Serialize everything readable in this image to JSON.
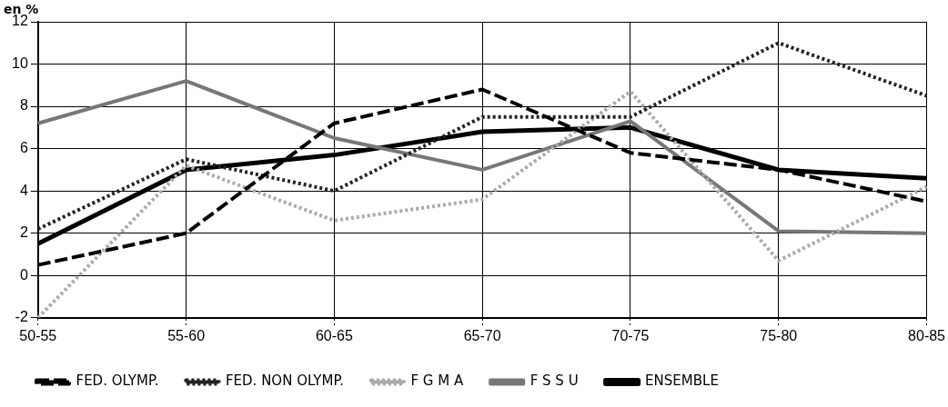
{
  "chart_data": {
    "type": "line",
    "ylabel": "en %",
    "categories": [
      "50-55",
      "55-60",
      "60-65",
      "65-70",
      "70-75",
      "75-80",
      "80-85"
    ],
    "series": [
      {
        "name": "FED. OLYMP.",
        "color": "#000000",
        "line_style": "dashed",
        "values": [
          0.5,
          2.0,
          7.2,
          8.8,
          5.8,
          5.0,
          3.5
        ]
      },
      {
        "name": "FED. NON OLYMP.",
        "color": "#222222",
        "line_style": "dotted",
        "values": [
          2.2,
          5.5,
          4.0,
          7.5,
          7.5,
          11.0,
          8.5
        ]
      },
      {
        "name": "F G M A",
        "color": "#aaaaaa",
        "line_style": "dotted",
        "values": [
          -2.0,
          5.2,
          2.6,
          3.6,
          8.7,
          0.7,
          4.2
        ]
      },
      {
        "name": "F S S U",
        "color": "#777777",
        "line_style": "solid",
        "values": [
          7.2,
          9.2,
          6.5,
          5.0,
          7.3,
          2.1,
          2.0
        ]
      },
      {
        "name": "ENSEMBLE",
        "color": "#000000",
        "line_style": "solid",
        "values": [
          1.5,
          5.0,
          5.7,
          6.8,
          7.0,
          5.0,
          4.6
        ]
      }
    ],
    "ylim": [
      -2,
      12
    ],
    "yticks": [
      -2,
      0,
      2,
      4,
      6,
      8,
      10,
      12
    ],
    "grid": true,
    "legend": "bottom",
    "marker": "none"
  }
}
